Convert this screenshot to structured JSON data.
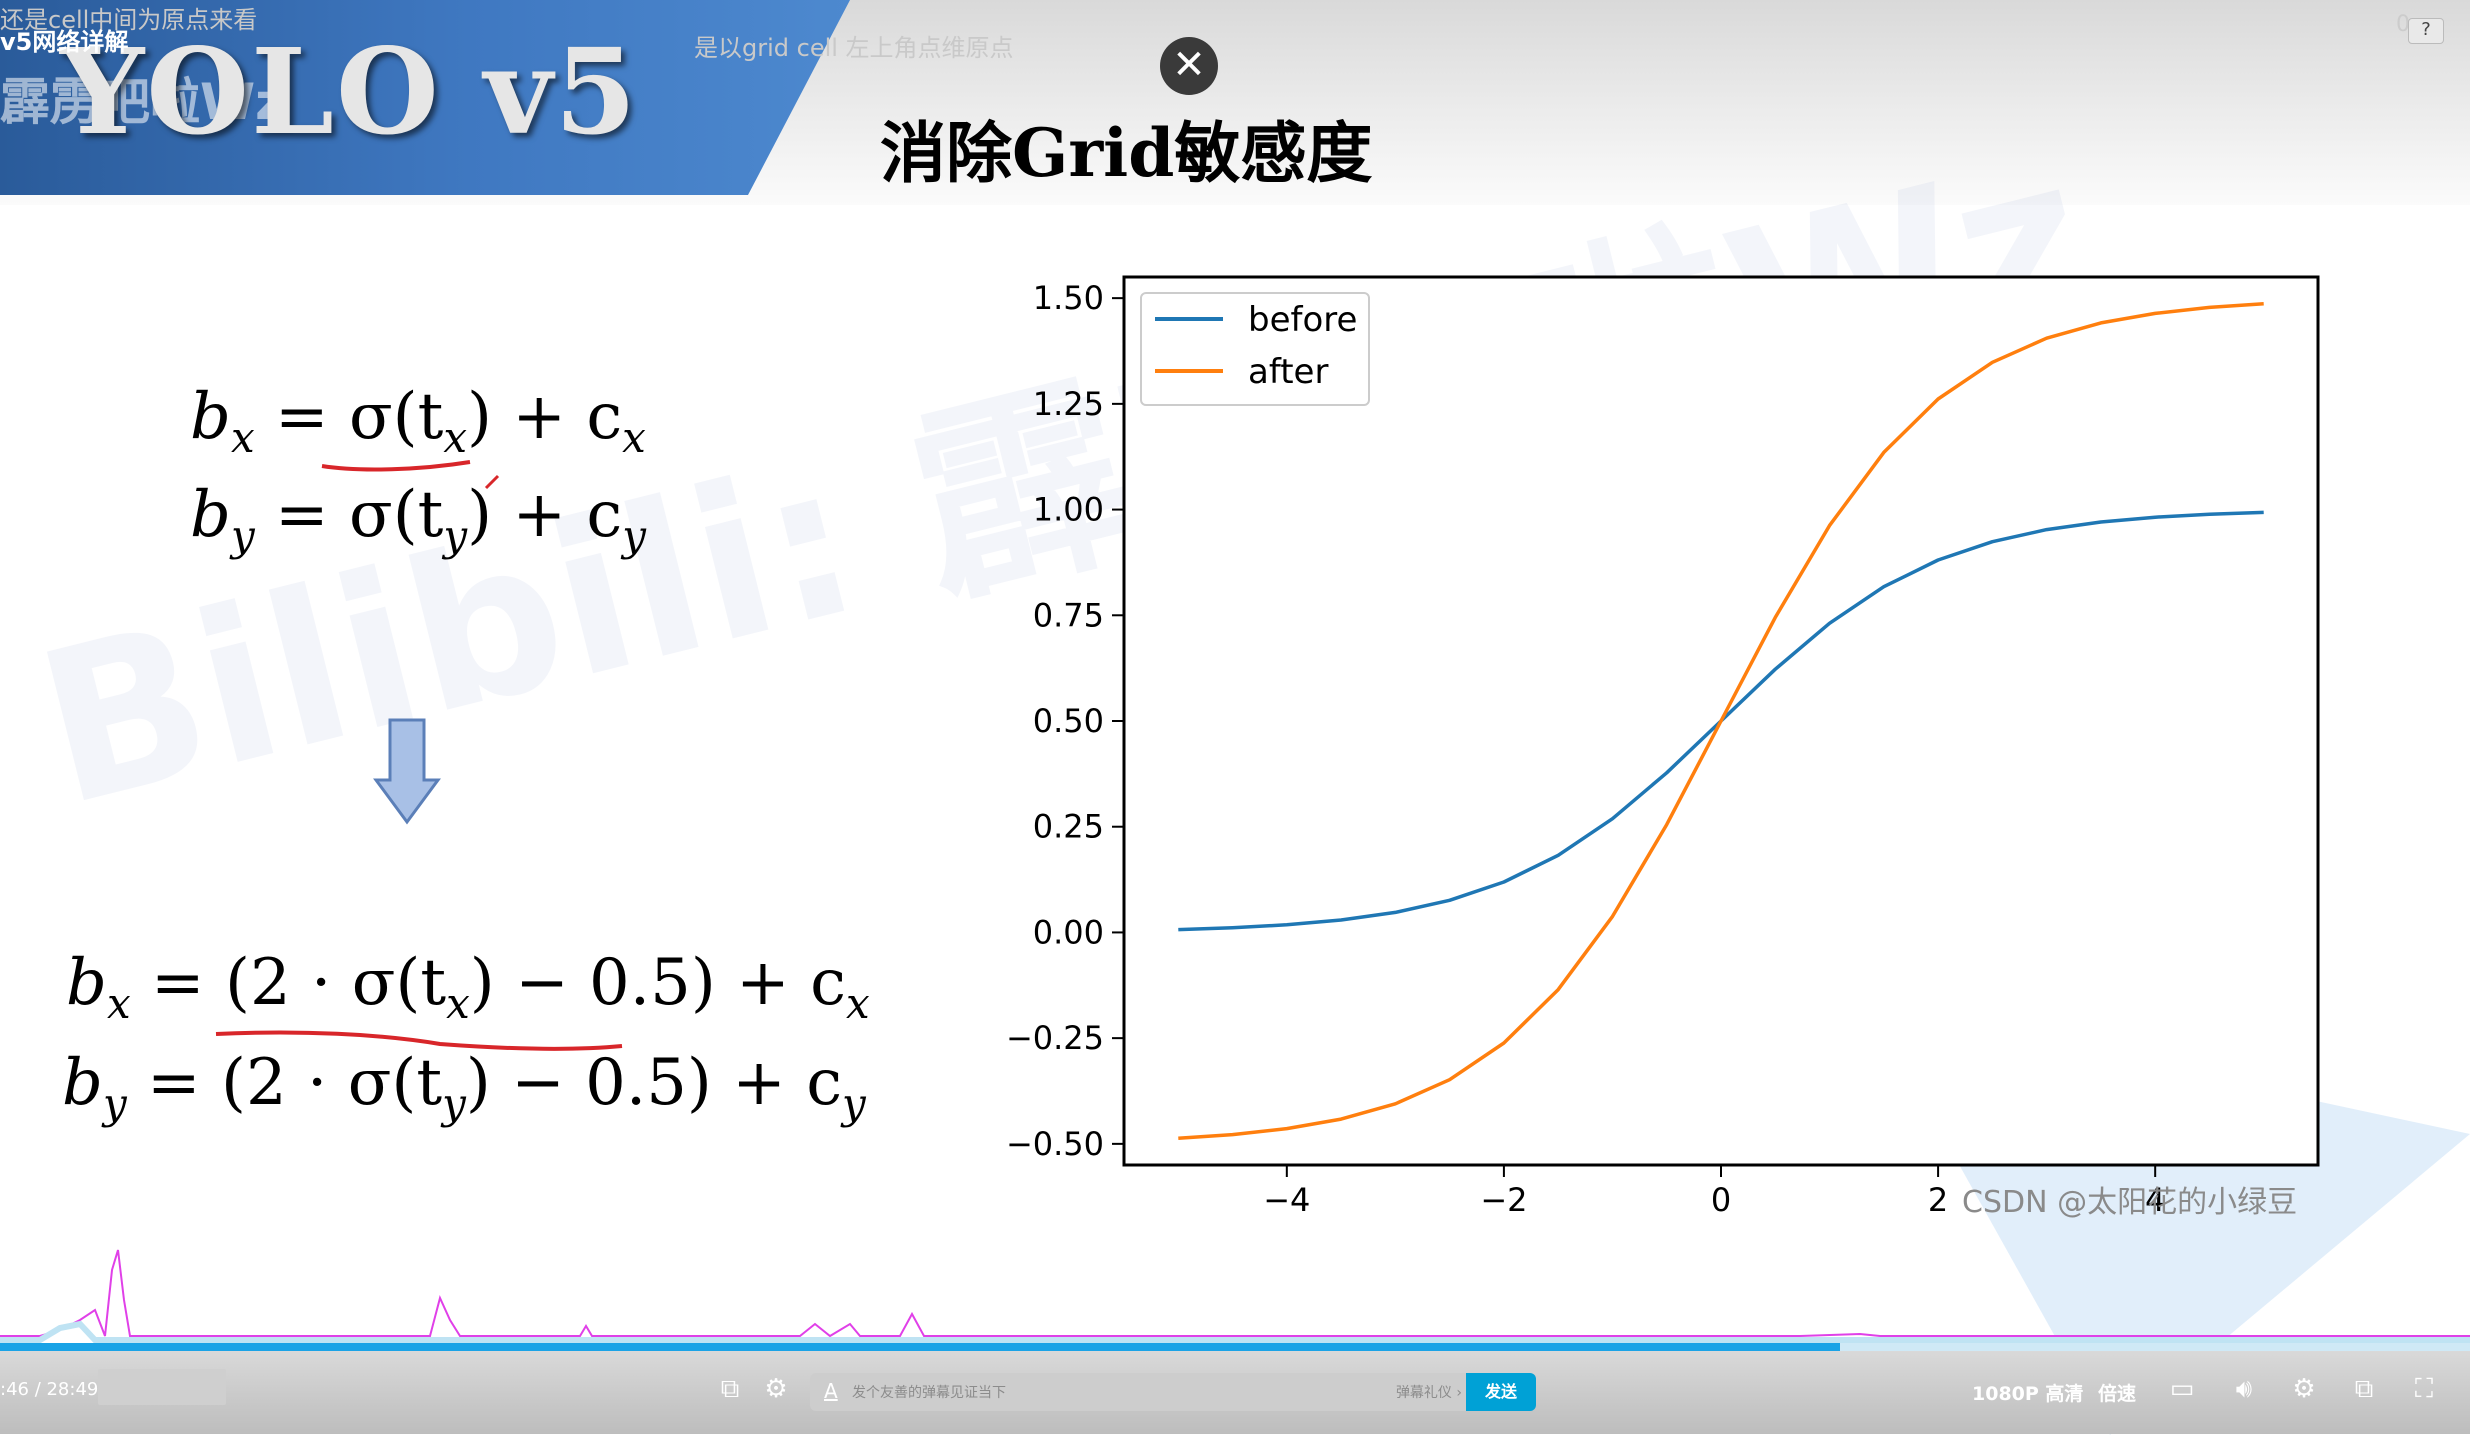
{
  "overlay": {
    "comment_1": "还是cell中间为原点来看",
    "video_title": "v5网络详解",
    "comment_2": "是以grid cell 左上角点维原点",
    "top_right_digits": "0"
  },
  "slide": {
    "brand": "YOLO v5",
    "brand_ghost": "霹雳吧啦Wz",
    "title": "消除Grid敏感度",
    "watermark": "Bilibili: 霹雳吧啦Wz"
  },
  "formulas": {
    "original": [
      {
        "lhs": "b",
        "lhs_sub": "x",
        "rhs": "= σ(t",
        "rhs_sub": "x",
        "tail": ") + c",
        "tail_sub": "x"
      },
      {
        "lhs": "b",
        "lhs_sub": "y",
        "rhs": "= σ(t",
        "rhs_sub": "y",
        "tail": ") + c",
        "tail_sub": "y"
      }
    ],
    "modified": [
      {
        "lhs": "b",
        "lhs_sub": "x",
        "rhs": "= (2 · σ(t",
        "rhs_sub": "x",
        "tail": ") − 0.5) + c",
        "tail_sub": "x"
      },
      {
        "lhs": "b",
        "lhs_sub": "y",
        "rhs": "= (2 · σ(t",
        "rhs_sub": "y",
        "tail": ") − 0.5) + c",
        "tail_sub": "y"
      }
    ]
  },
  "chart_watermark": "CSDN @太阳花的小绿豆",
  "chart_data": {
    "type": "line",
    "xlabel": "",
    "ylabel": "",
    "xlim": [
      -5.5,
      5.5
    ],
    "ylim": [
      -0.55,
      1.55
    ],
    "xticks": [
      -4,
      -2,
      0,
      2,
      4
    ],
    "xtick_labels": [
      "−4",
      "−2",
      "0",
      "2",
      "4"
    ],
    "yticks": [
      -0.5,
      -0.25,
      0.0,
      0.25,
      0.5,
      0.75,
      1.0,
      1.25,
      1.5
    ],
    "ytick_labels": [
      "−0.50",
      "−0.25",
      "0.00",
      "0.25",
      "0.50",
      "0.75",
      "1.00",
      "1.25",
      "1.50"
    ],
    "legend_position": "top-left",
    "x": [
      -5,
      -4.5,
      -4,
      -3.5,
      -3,
      -2.5,
      -2,
      -1.5,
      -1,
      -0.5,
      0,
      0.5,
      1,
      1.5,
      2,
      2.5,
      3,
      3.5,
      4,
      4.5,
      5
    ],
    "series": [
      {
        "name": "before",
        "color": "#1f77b4",
        "values": [
          0.0067,
          0.011,
          0.018,
          0.0293,
          0.0474,
          0.0759,
          0.1192,
          0.1824,
          0.2689,
          0.3775,
          0.5,
          0.6225,
          0.7311,
          0.8176,
          0.8808,
          0.9241,
          0.9526,
          0.9707,
          0.982,
          0.989,
          0.9933
        ]
      },
      {
        "name": "after",
        "color": "#ff7f0e",
        "values": [
          -0.4866,
          -0.478,
          -0.464,
          -0.4414,
          -0.4052,
          -0.3482,
          -0.2616,
          -0.1352,
          0.0378,
          0.255,
          0.5,
          0.745,
          0.9622,
          1.1352,
          1.2616,
          1.3482,
          1.4052,
          1.4414,
          1.464,
          1.478,
          1.4866
        ]
      }
    ]
  },
  "player": {
    "time_display": ":46 / 28:49",
    "danmaku_placeholder": "发个友善的弹幕见证当下",
    "danmaku_etiquette": "弹幕礼仪 ›",
    "send_label": "发送",
    "quality_label": "1080P 高清",
    "speed_label": "倍速",
    "progress_fraction": 0.745,
    "accent_color": "#00a1d6"
  }
}
